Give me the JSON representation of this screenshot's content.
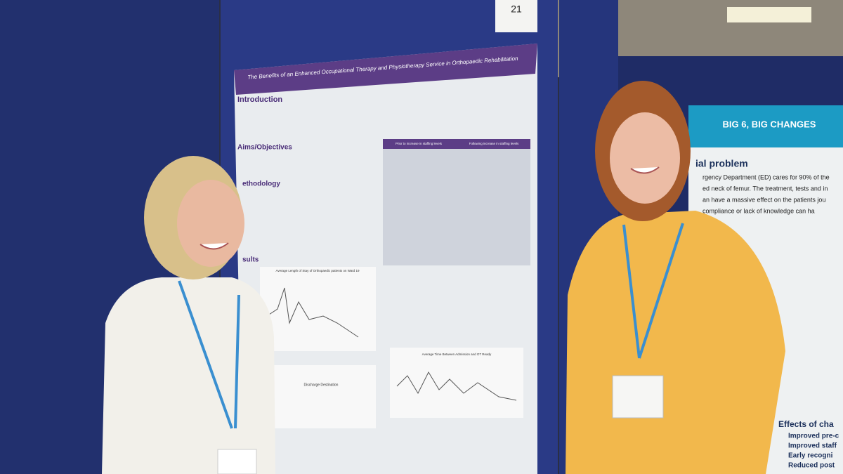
{
  "booth_number": "21",
  "left_poster": {
    "title": "The Benefits of an Enhanced Occupational Therapy and Physiotherapy Service in Orthopaedic Rehabilitation",
    "sections": [
      "Introduction",
      "Aims/Objectives",
      "ethodology",
      "sults"
    ],
    "table_headers": [
      "Prior to increase in staffing levels",
      "Following increase in staffing levels"
    ],
    "chart_titles": [
      "Average Length of Stay of Orthopaedic patients on Ward 19",
      "Discharge Destination",
      "Average Time Between Admission and OT Ready"
    ]
  },
  "right_poster": {
    "title": "BIG 6, BIG CHANGES",
    "heading": "ial problem",
    "body_lines": [
      "rgency Department (ED) cares for 90% of the",
      "ed neck of femur. The treatment, tests and in",
      "an have a massive effect on the patients jou",
      "compliance or lack of knowledge can ha"
    ],
    "effects_heading": "Effects of cha",
    "effects": [
      "Improved pre-c",
      "Improved staff",
      "Early recogni",
      "Reduced post"
    ]
  }
}
